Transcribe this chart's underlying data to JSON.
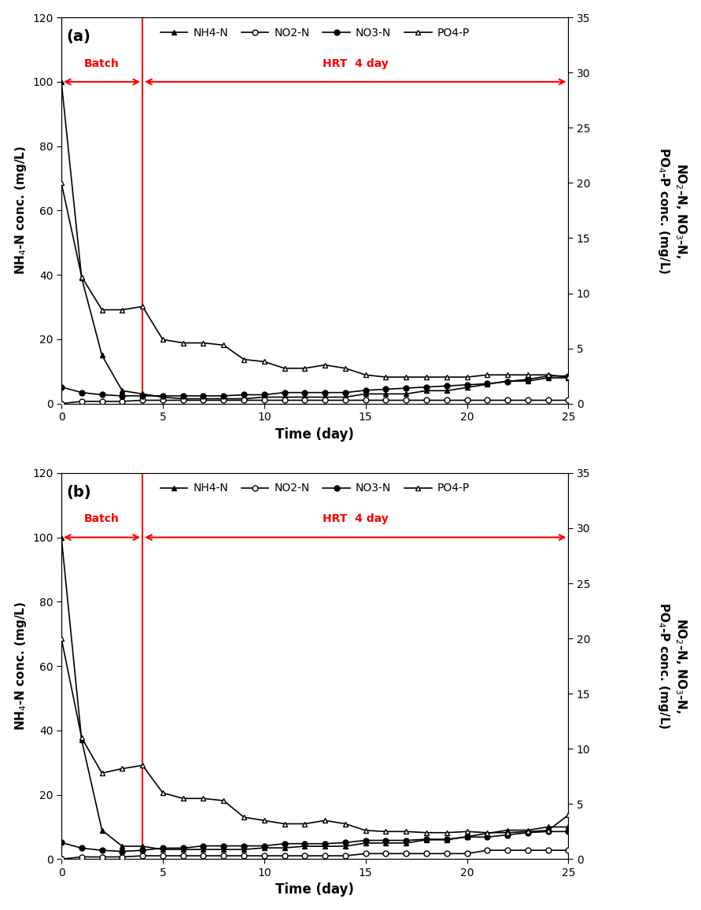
{
  "panel_a": {
    "NH4_N": {
      "x": [
        0,
        1,
        2,
        3,
        4,
        5,
        6,
        7,
        8,
        9,
        10,
        11,
        12,
        13,
        14,
        15,
        16,
        17,
        18,
        19,
        20,
        21,
        22,
        23,
        24,
        25
      ],
      "y": [
        100,
        39,
        15,
        4,
        3,
        2,
        1.5,
        1.5,
        1.5,
        1.5,
        2,
        2,
        2,
        2,
        2,
        3,
        3,
        3,
        4,
        4,
        5,
        6,
        7,
        7,
        8,
        8
      ]
    },
    "NO2_N": {
      "x": [
        0,
        1,
        2,
        3,
        4,
        5,
        6,
        7,
        8,
        9,
        10,
        11,
        12,
        13,
        14,
        15,
        16,
        17,
        18,
        19,
        20,
        21,
        22,
        23,
        24,
        25
      ],
      "y": [
        0,
        0.2,
        0.2,
        0.2,
        0.3,
        0.3,
        0.3,
        0.3,
        0.3,
        0.3,
        0.3,
        0.3,
        0.3,
        0.3,
        0.3,
        0.3,
        0.3,
        0.3,
        0.3,
        0.3,
        0.3,
        0.3,
        0.3,
        0.3,
        0.3,
        0.3
      ]
    },
    "NO3_N": {
      "x": [
        0,
        1,
        2,
        3,
        4,
        5,
        6,
        7,
        8,
        9,
        10,
        11,
        12,
        13,
        14,
        15,
        16,
        17,
        18,
        19,
        20,
        21,
        22,
        23,
        24,
        25
      ],
      "y": [
        1.5,
        1.0,
        0.8,
        0.7,
        0.7,
        0.7,
        0.7,
        0.7,
        0.7,
        0.8,
        0.8,
        1.0,
        1.0,
        1.0,
        1.0,
        1.2,
        1.3,
        1.4,
        1.5,
        1.6,
        1.7,
        1.8,
        2.0,
        2.2,
        2.5,
        2.5
      ]
    },
    "PO4_P": {
      "x": [
        0,
        1,
        2,
        3,
        4,
        5,
        6,
        7,
        8,
        9,
        10,
        11,
        12,
        13,
        14,
        15,
        16,
        17,
        18,
        19,
        20,
        21,
        22,
        23,
        24,
        25
      ],
      "y": [
        20,
        11.5,
        8.5,
        8.5,
        8.8,
        5.8,
        5.5,
        5.5,
        5.3,
        4.0,
        3.8,
        3.2,
        3.2,
        3.5,
        3.2,
        2.6,
        2.4,
        2.4,
        2.4,
        2.4,
        2.4,
        2.6,
        2.6,
        2.6,
        2.6,
        2.4
      ]
    }
  },
  "panel_b": {
    "NH4_N": {
      "x": [
        0,
        1,
        2,
        3,
        4,
        5,
        6,
        7,
        8,
        9,
        10,
        11,
        12,
        13,
        14,
        15,
        16,
        17,
        18,
        19,
        20,
        21,
        22,
        23,
        24,
        25
      ],
      "y": [
        100,
        37,
        9,
        4,
        4,
        3,
        3,
        3,
        3,
        3,
        3.5,
        3.5,
        4,
        4,
        4,
        5,
        5,
        5,
        6,
        6,
        7,
        8,
        9,
        9,
        10,
        10
      ]
    },
    "NO2_N": {
      "x": [
        0,
        1,
        2,
        3,
        4,
        5,
        6,
        7,
        8,
        9,
        10,
        11,
        12,
        13,
        14,
        15,
        16,
        17,
        18,
        19,
        20,
        21,
        22,
        23,
        24,
        25
      ],
      "y": [
        0,
        0.2,
        0.2,
        0.2,
        0.3,
        0.3,
        0.3,
        0.3,
        0.3,
        0.3,
        0.3,
        0.3,
        0.3,
        0.3,
        0.3,
        0.5,
        0.5,
        0.5,
        0.5,
        0.5,
        0.5,
        0.8,
        0.8,
        0.8,
        0.8,
        0.8
      ]
    },
    "NO3_N": {
      "x": [
        0,
        1,
        2,
        3,
        4,
        5,
        6,
        7,
        8,
        9,
        10,
        11,
        12,
        13,
        14,
        15,
        16,
        17,
        18,
        19,
        20,
        21,
        22,
        23,
        24,
        25
      ],
      "y": [
        1.5,
        1.0,
        0.8,
        0.7,
        0.8,
        1.0,
        1.0,
        1.2,
        1.2,
        1.2,
        1.2,
        1.4,
        1.4,
        1.4,
        1.5,
        1.7,
        1.7,
        1.7,
        1.8,
        1.8,
        2.0,
        2.0,
        2.2,
        2.4,
        2.5,
        2.5
      ]
    },
    "PO4_P": {
      "x": [
        0,
        1,
        2,
        3,
        4,
        5,
        6,
        7,
        8,
        9,
        10,
        11,
        12,
        13,
        14,
        15,
        16,
        17,
        18,
        19,
        20,
        21,
        22,
        23,
        24,
        25
      ],
      "y": [
        20,
        11.0,
        7.8,
        8.2,
        8.5,
        6.0,
        5.5,
        5.5,
        5.3,
        3.8,
        3.5,
        3.2,
        3.2,
        3.5,
        3.2,
        2.6,
        2.5,
        2.5,
        2.4,
        2.4,
        2.5,
        2.4,
        2.4,
        2.5,
        2.6,
        4.0
      ]
    }
  },
  "xlim": [
    0,
    25
  ],
  "ylim_left": [
    0,
    120
  ],
  "ylim_right": [
    0,
    35
  ],
  "xlabel": "Time (day)",
  "ylabel_left": "NH$_4$-N conc. (mg/L)",
  "ylabel_right": "NO$_2$-N, NO$_3$-N,\nPO$_4$-P conc. (mg/L)",
  "yticks_left": [
    0,
    20,
    40,
    60,
    80,
    100,
    120
  ],
  "yticks_right": [
    0,
    5,
    10,
    15,
    20,
    25,
    30,
    35
  ],
  "xticks": [
    0,
    5,
    10,
    15,
    20,
    25
  ],
  "vline_x": 4,
  "batch_label": "Batch",
  "hrt_label": "HRT  4 day",
  "panel_labels": [
    "(a)",
    "(b)"
  ],
  "arrow_color": "red",
  "vline_color": "red",
  "background_color": "white"
}
